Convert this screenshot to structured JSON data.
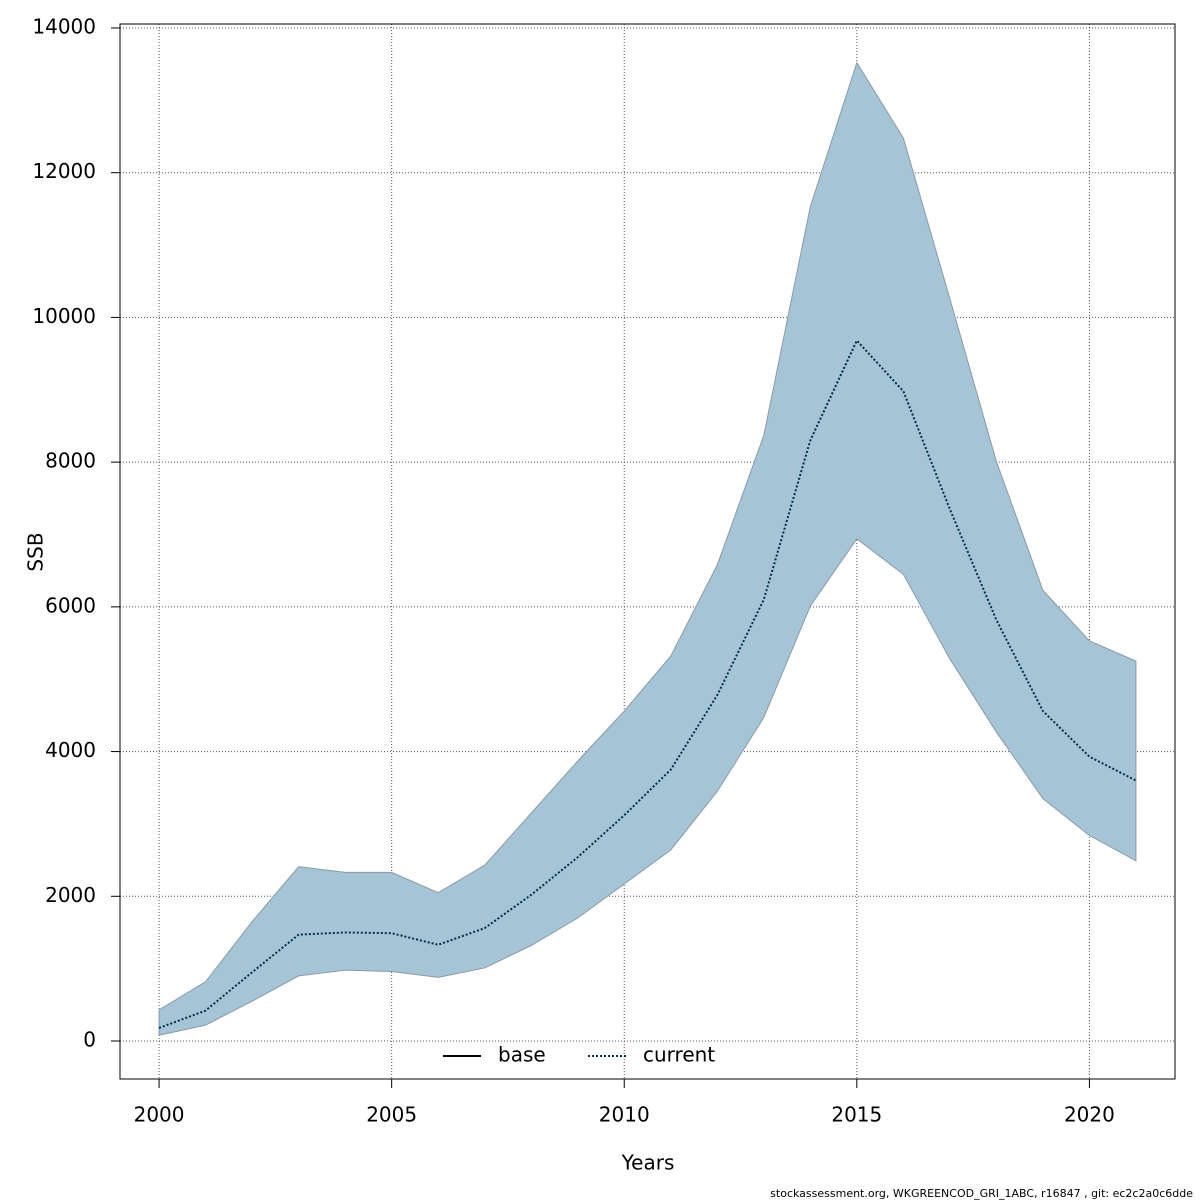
{
  "chart_data": {
    "type": "line",
    "x_label": "Years",
    "y_label": "SSB",
    "footer": "stockassessment.org, WKGREENCOD_GRI_1ABC, r16847 , git: ec2c2a0c6dde",
    "x": [
      2000,
      2001,
      2002,
      2003,
      2004,
      2005,
      2006,
      2007,
      2008,
      2009,
      2010,
      2011,
      2012,
      2013,
      2014,
      2015,
      2016,
      2017,
      2018,
      2019,
      2020,
      2021
    ],
    "series": [
      {
        "name": "base",
        "color": "#000000",
        "dash": "solid",
        "values": [
          null,
          null,
          null,
          null,
          null,
          null,
          null,
          null,
          null,
          null,
          null,
          null,
          null,
          null,
          null,
          null,
          null,
          null,
          null,
          null,
          null,
          null
        ]
      },
      {
        "name": "current",
        "color": "#00304a",
        "dash": "dotted",
        "values": [
          180,
          420,
          950,
          1470,
          1500,
          1490,
          1330,
          1560,
          2020,
          2540,
          3120,
          3750,
          4780,
          6100,
          8300,
          9680,
          8980,
          7350,
          5820,
          4560,
          3930,
          3600
        ]
      }
    ],
    "band": {
      "color": "#a5c4d6",
      "upper": [
        430,
        820,
        1650,
        2410,
        2330,
        2330,
        2050,
        2430,
        3150,
        3870,
        4560,
        5320,
        6580,
        8370,
        11530,
        13520,
        12480,
        10260,
        8010,
        6230,
        5530,
        5250
      ],
      "lower": [
        80,
        220,
        550,
        900,
        980,
        960,
        880,
        1010,
        1320,
        1700,
        2170,
        2640,
        3450,
        4470,
        6010,
        6940,
        6450,
        5280,
        4270,
        3350,
        2840,
        2490
      ]
    },
    "xlim": [
      1999.16,
      2021.84
    ],
    "xticks": [
      2000,
      2005,
      2010,
      2015,
      2020
    ],
    "ylim": [
      -525,
      14055
    ],
    "yticks": [
      0,
      2000,
      4000,
      6000,
      8000,
      10000,
      12000,
      14000
    ],
    "grid": true,
    "legend": "bottom"
  }
}
